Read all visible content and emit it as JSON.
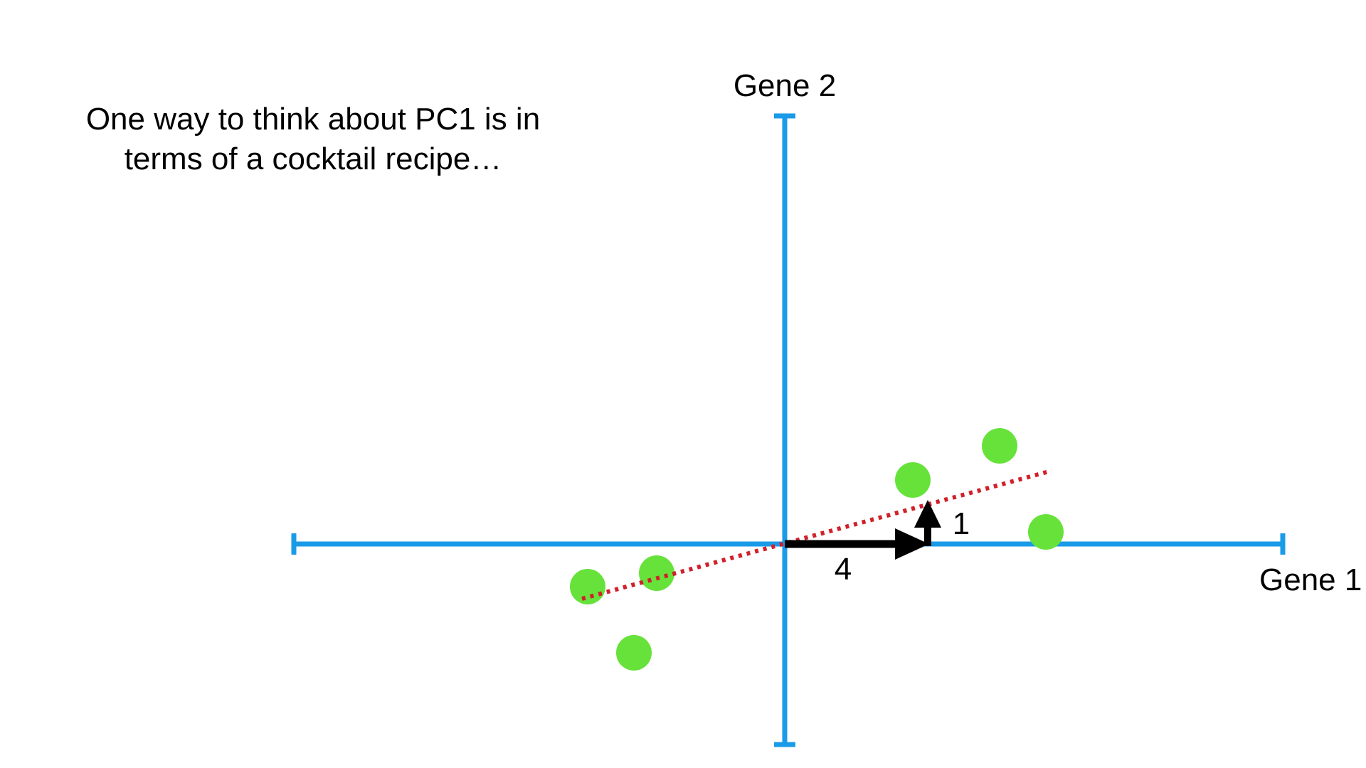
{
  "caption": {
    "line1": "One way to think about PC1 is in",
    "line2": "terms of a cocktail recipe…"
  },
  "axes": {
    "x_label": "Gene 1",
    "y_label": "Gene 2"
  },
  "vectors": {
    "gene1_component": "4",
    "gene2_component": "1"
  },
  "colors": {
    "axis": "#1a9be8",
    "points": "#66e23a",
    "pc1_line": "#d0202a",
    "vectors": "#000000"
  }
}
